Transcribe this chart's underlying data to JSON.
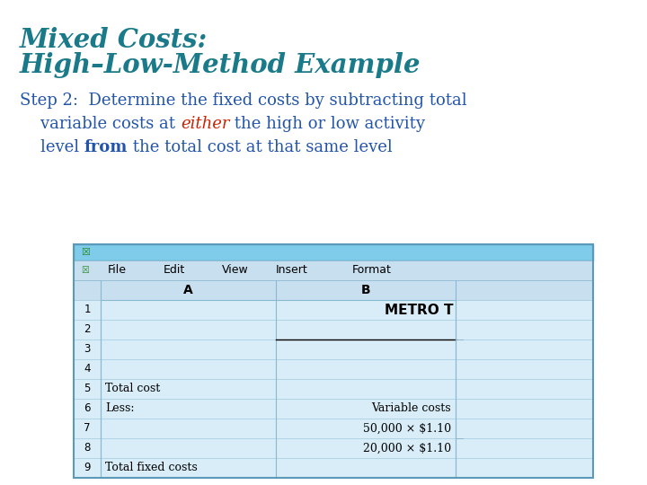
{
  "title_line1": "Mixed Costs:",
  "title_line2": "High–Low-Method Example",
  "title_color": "#1a7a8a",
  "bg_color": "#ffffff",
  "step_color": "#2255aa",
  "either_color": "#cc2200",
  "spreadsheet_title_bar_color": "#7ec8e3",
  "spreadsheet_menu_bar_color": "#b8ddf0",
  "spreadsheet_cell_color": "#ddeef8",
  "spreadsheet_header_color": "#c5e3f5",
  "spreadsheet_border_color": "#8ab8d0",
  "grid_color": "#a0c8e0",
  "row_numbers": [
    "1",
    "2",
    "3",
    "4",
    "5",
    "6",
    "7",
    "8",
    "9"
  ],
  "col_a_data": [
    "",
    "",
    "",
    "",
    "Total cost",
    "Less:",
    "",
    "",
    "Total fixed costs"
  ],
  "col_b_data": [
    "METRO T",
    "",
    "",
    "",
    "",
    "Variable costs",
    "50,000 × $1.10",
    "20,000 × $1.10",
    ""
  ],
  "metro_row": 0,
  "menu_items": [
    "File",
    "Edit",
    "View",
    "Insert",
    "Format"
  ]
}
